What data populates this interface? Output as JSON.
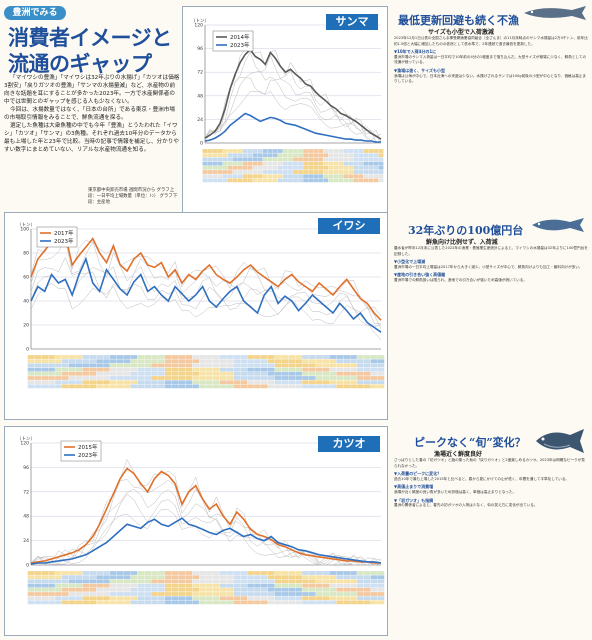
{
  "header": {
    "tag": "豊洲でみる",
    "title_line1": "消費者イメージと",
    "title_line2": "流通のギャップ"
  },
  "lead": {
    "p1": "「マイワシの豊漁」「マイワシは32年ぶりの水揚げ」「カツオは価格3割安」「戻りガツオの豊漁」「サンマの水揚量減」など、水産物の前向きな話題を耳にすることが多かった2023年。一方で水産関係者の中では世間とのギャップを感じる人も少なくない。",
    "p2": "今回は、水揚数量ではなく、「日本の台所」である東京・豊洲市場の市場取引情報をみることで、鮮魚流通を探る。",
    "p3": "選定した魚種は大衆魚種の中でも今年「豊漁」とうたわれた「イワシ」「カツオ」「サンマ」の3魚種。それぞれ過去10年分のデータから最も上場した年と23年で比較。当時の記事で情報を補足し、分かりやすい数字にまとめていない、リアルな水産物流通を知る。",
    "hl1": "「日本の台所」",
    "source": "東京都中央卸売市場 週間市況から グラフ上段：一日平均上場数量（単位：ﾄﾝ） グラフ下段：主産地"
  },
  "sanma": {
    "label": "サンマ",
    "color": "#1f6fb8",
    "legend": [
      "2014年",
      "2023年"
    ],
    "legend_colors": [
      "#5a5a5a",
      "#2f6fc0"
    ],
    "y_unit": "（トン）",
    "title": "最低更新回避も続く不漁",
    "subtitle": "サイズも小型で入荷激減",
    "body": "2023年12月1日公表の全国さんま棒受網漁業協同組合（全さんま）の11月末時点のサンマ水揚量は2万4千トン、前年比約1.5倍と大幅に増加したものの依然として低水準で、2年連続で過去最低を更新した。",
    "sub1": "▼10年で入荷4分の1に",
    "body2": "豊洲市場のサンマ入荷量は一日平均で10年前の4分の1程度まで落ち込んだ。大型サイズが極端に少なく、鮮魚としての流通が細っている。",
    "sub2": "▼漁場は遠く、サイズも小型",
    "body3": "漁場は公海が中心で、日本近海への来遊は少ない。水揚げされるサンマは100g前後の小型が中心となり、価格は高止まりしている。"
  },
  "iwashi": {
    "label": "イワシ",
    "color": "#1f6fb8",
    "legend": [
      "2017年",
      "2023年"
    ],
    "legend_colors": [
      "#e0702a",
      "#2f6fc0"
    ],
    "y_unit": "（トン）",
    "title": "32年ぶりの100億円台",
    "subtitle": "鮮魚向け比例せず、入荷減",
    "body": "農水省が昨年12月末に公表した2022年の漁業・養殖業生産統計によると、マイワシの水揚量は32年ぶりに100億円台を記録した。",
    "sub1": "▼小型化で上場減",
    "body2": "豊洲市場の一日平均上場量は2017年から大きく減少。小型サイズが中心で、鮮魚向けよりも加工・餌料向けが多い。",
    "sub2": "▼産地の引き合い強く高値継",
    "body3": "豊洲市場での鮮魚扱いは限られ、産地での引き合いが強いため高値が続いている。"
  },
  "katsuo": {
    "label": "カツオ",
    "color": "#1f6fb8",
    "legend": [
      "2015年",
      "2023年"
    ],
    "legend_colors": [
      "#e0702a",
      "#2f6fc0"
    ],
    "y_unit": "（トン）",
    "title": "ピークなく“旬”変化？",
    "subtitle": "漁場近く鮮度良好",
    "body": "さっぱりとした春の「初ガツオ」と脂の乗った秋の「戻りガツオ」と2度楽しめるカツオ。2023年は明確なピークが見られなかった。",
    "sub1": "▼入荷量のピークに変化？",
    "body2": "過去10年で最も上場した2015年と比べると、春から夏にかけての山が低く、年間を通して平準化している。",
    "sub2": "▼高値止まりで消費増",
    "body3": "漁場が近く鮮度の良い魚が多いため評価は高く、単価は高止まりとなった。",
    "sub3": "▼「初ガツオ」も指摘",
    "body4": "豊洲の関係者によると、春先の初ガツオの入荷は少なく、旬の捉え方に変化が出ている。"
  },
  "chart_data": [
    {
      "type": "line",
      "title": "サンマ",
      "ylabel": "（トン）",
      "x": [
        1,
        2,
        3,
        4,
        5,
        6,
        7,
        8,
        9,
        10,
        11,
        12,
        13,
        14,
        15,
        16,
        17,
        18,
        19,
        20,
        21,
        22,
        23,
        24,
        25,
        26,
        27,
        28,
        29,
        30,
        31,
        32,
        33,
        34,
        35,
        36
      ],
      "series": [
        {
          "name": "2014年",
          "values": [
            5,
            8,
            12,
            20,
            35,
            55,
            70,
            82,
            90,
            95,
            88,
            85,
            80,
            92,
            86,
            78,
            72,
            75,
            70,
            66,
            60,
            58,
            52,
            47,
            43,
            38,
            35,
            30,
            28,
            25,
            22,
            18,
            14,
            10,
            7,
            4
          ]
        },
        {
          "name": "2023年",
          "values": [
            2,
            3,
            5,
            8,
            12,
            18,
            22,
            26,
            30,
            28,
            25,
            22,
            24,
            26,
            25,
            23,
            20,
            19,
            18,
            16,
            14,
            12,
            10,
            9,
            8,
            7,
            6,
            5,
            4,
            4,
            3,
            3,
            2,
            2,
            1,
            1
          ]
        }
      ],
      "ylim": [
        0,
        120
      ]
    },
    {
      "type": "line",
      "title": "イワシ",
      "ylabel": "（トン）",
      "x": [
        1,
        2,
        3,
        4,
        5,
        6,
        7,
        8,
        9,
        10,
        11,
        12,
        13,
        14,
        15,
        16,
        17,
        18,
        19,
        20,
        21,
        22,
        23,
        24,
        25,
        26,
        27,
        28,
        29,
        30,
        31,
        32,
        33,
        34,
        35,
        36,
        37,
        38,
        39,
        40,
        41,
        42,
        43,
        44,
        45,
        46,
        47,
        48,
        49,
        50,
        51,
        52
      ],
      "series": [
        {
          "name": "2017年",
          "values": [
            60,
            75,
            82,
            90,
            88,
            95,
            70,
            78,
            85,
            92,
            80,
            72,
            86,
            70,
            65,
            75,
            80,
            70,
            68,
            72,
            60,
            66,
            55,
            62,
            58,
            65,
            70,
            62,
            58,
            55,
            60,
            66,
            70,
            64,
            60,
            56,
            52,
            58,
            62,
            56,
            52,
            48,
            55,
            50,
            45,
            52,
            58,
            50,
            42,
            38,
            30,
            24
          ]
        },
        {
          "name": "2023年",
          "values": [
            40,
            52,
            48,
            62,
            55,
            58,
            45,
            62,
            75,
            55,
            48,
            66,
            58,
            50,
            45,
            56,
            62,
            48,
            52,
            45,
            40,
            52,
            46,
            40,
            45,
            52,
            40,
            35,
            42,
            48,
            52,
            40,
            35,
            30,
            45,
            52,
            38,
            44,
            40,
            32,
            38,
            45,
            40,
            35,
            30,
            38,
            32,
            25,
            30,
            22,
            18,
            14
          ]
        }
      ],
      "ylim": [
        0,
        100
      ]
    },
    {
      "type": "line",
      "title": "カツオ",
      "ylabel": "（トン）",
      "x": [
        1,
        2,
        3,
        4,
        5,
        6,
        7,
        8,
        9,
        10,
        11,
        12,
        13,
        14,
        15,
        16,
        17,
        18,
        19,
        20,
        21,
        22,
        23,
        24,
        25,
        26,
        27,
        28,
        29,
        30,
        31,
        32,
        33,
        34,
        35,
        36,
        37,
        38,
        39,
        40,
        41,
        42,
        43,
        44,
        45,
        46,
        47,
        48,
        49,
        50,
        51,
        52
      ],
      "series": [
        {
          "name": "2015年",
          "values": [
            2,
            3,
            4,
            6,
            8,
            10,
            12,
            15,
            20,
            28,
            40,
            55,
            70,
            85,
            95,
            90,
            80,
            72,
            85,
            92,
            88,
            80,
            60,
            72,
            78,
            65,
            55,
            60,
            48,
            40,
            52,
            45,
            35,
            30,
            28,
            25,
            20,
            18,
            15,
            12,
            10,
            9,
            8,
            7,
            6,
            5,
            4,
            4,
            3,
            3,
            2,
            2
          ]
        },
        {
          "name": "2023年",
          "values": [
            1,
            2,
            2,
            3,
            4,
            5,
            6,
            8,
            10,
            14,
            18,
            22,
            28,
            34,
            40,
            38,
            36,
            42,
            45,
            40,
            38,
            42,
            46,
            40,
            38,
            35,
            32,
            30,
            34,
            36,
            32,
            28,
            30,
            26,
            24,
            28,
            22,
            20,
            18,
            15,
            14,
            12,
            10,
            9,
            8,
            7,
            6,
            5,
            4,
            3,
            3,
            2
          ]
        }
      ],
      "ylim": [
        0,
        120
      ]
    }
  ]
}
